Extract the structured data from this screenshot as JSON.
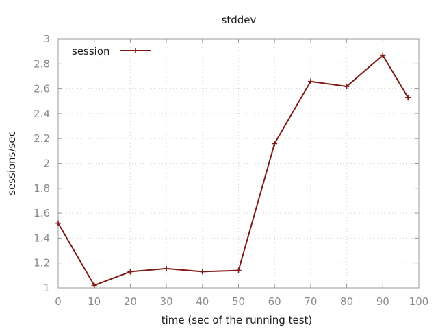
{
  "chart_data": {
    "type": "line",
    "title": "stddev",
    "xlabel": "time (sec of the running test)",
    "ylabel": "sessions/sec",
    "xlim": [
      0,
      100
    ],
    "ylim": [
      1,
      3
    ],
    "xticks": [
      0,
      10,
      20,
      30,
      40,
      50,
      60,
      70,
      80,
      90,
      100
    ],
    "yticks": [
      1,
      1.2,
      1.4,
      1.6,
      1.8,
      2,
      2.2,
      2.4,
      2.6,
      2.8,
      3
    ],
    "grid": true,
    "legend_position": "top-left",
    "series": [
      {
        "name": "session",
        "color": "#7f1a14",
        "marker": "plus",
        "x": [
          0,
          10,
          20,
          30,
          40,
          50,
          60,
          70,
          80,
          90,
          97
        ],
        "y": [
          1.52,
          1.02,
          1.13,
          1.155,
          1.13,
          1.14,
          2.16,
          2.66,
          2.62,
          2.87,
          2.53
        ]
      }
    ]
  }
}
